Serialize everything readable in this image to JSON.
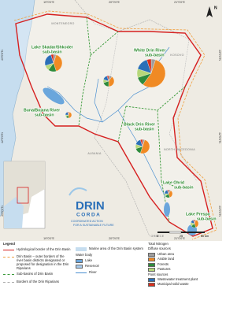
{
  "map": {
    "coords_top": [
      "19°0'0\"E",
      "20°0'0\"E",
      "21°0'0\"E"
    ],
    "coords_side": [
      "43°0'0\"N",
      "42°0'0\"N",
      "41°0'0\"N"
    ],
    "subbasins": [
      [
        "Lake Skadar/Shkoder",
        "sub-basin"
      ],
      [
        "White Drin River",
        "sub-basin"
      ],
      [
        "Buna/Bojana River",
        "sub-basin"
      ],
      [
        "Black Drin River",
        "sub-basin"
      ],
      [
        "Lake Ohrid",
        "sub-basin"
      ],
      [
        "Lake Prespa",
        "sub-basin"
      ]
    ],
    "countries": [
      "MONTENEGRO",
      "KOSOVO",
      "ALBANIA",
      "NORTH MACEDONIA",
      "GREECE"
    ],
    "pies": [
      {
        "shares": [
          5,
          40,
          15,
          10,
          25,
          5
        ]
      },
      {
        "shares": [
          5,
          55,
          10,
          10,
          15,
          5
        ]
      },
      {
        "shares": [
          10,
          40,
          20,
          10,
          15,
          5
        ]
      },
      {
        "shares": [
          5,
          45,
          15,
          10,
          20,
          5
        ]
      },
      {
        "shares": [
          5,
          50,
          15,
          10,
          15,
          5
        ]
      },
      {
        "shares": [
          10,
          35,
          20,
          10,
          20,
          5
        ]
      },
      {
        "shares": [
          5,
          40,
          20,
          15,
          15,
          5
        ]
      }
    ]
  },
  "logo": {
    "name": "DRIN",
    "subname": "CORDA",
    "tagline": [
      "COORDINATED ACTION",
      "FOR A SUSTAINABLE FUTURE"
    ]
  },
  "scale": [
    "0",
    "25",
    "50 km"
  ],
  "north": "N",
  "legend": {
    "title": "Legend",
    "items": [
      "Hydrological border of the Drin Basin",
      "Drin Basin – outer borders of the river basin districts designated or proposed for designation in the Drin Riparians",
      "Sub-basins of Drin Basin",
      "Borders of the Drin Riparians",
      "Marine area of the Drin Basin system"
    ],
    "water_body": {
      "title": "Water body",
      "items": [
        "Lake",
        "Reservoir",
        "River"
      ]
    },
    "nitrogen": {
      "title": "Total Nitrogen",
      "groups": [
        {
          "title": "Diffuse sources",
          "items": [
            {
              "label": "Urban area",
              "color": "#9e9e9e"
            },
            {
              "label": "Arable land",
              "color": "#f08a24"
            },
            {
              "label": "Forests",
              "color": "#2e8b3c"
            },
            {
              "label": "Pastures",
              "color": "#b6d77a"
            }
          ]
        },
        {
          "title": "Point sources",
          "items": [
            {
              "label": "Wastewater treatment plant",
              "color": "#2a6fb8"
            },
            {
              "label": "Municipal solid waste",
              "color": "#d7301f"
            }
          ]
        }
      ]
    }
  }
}
